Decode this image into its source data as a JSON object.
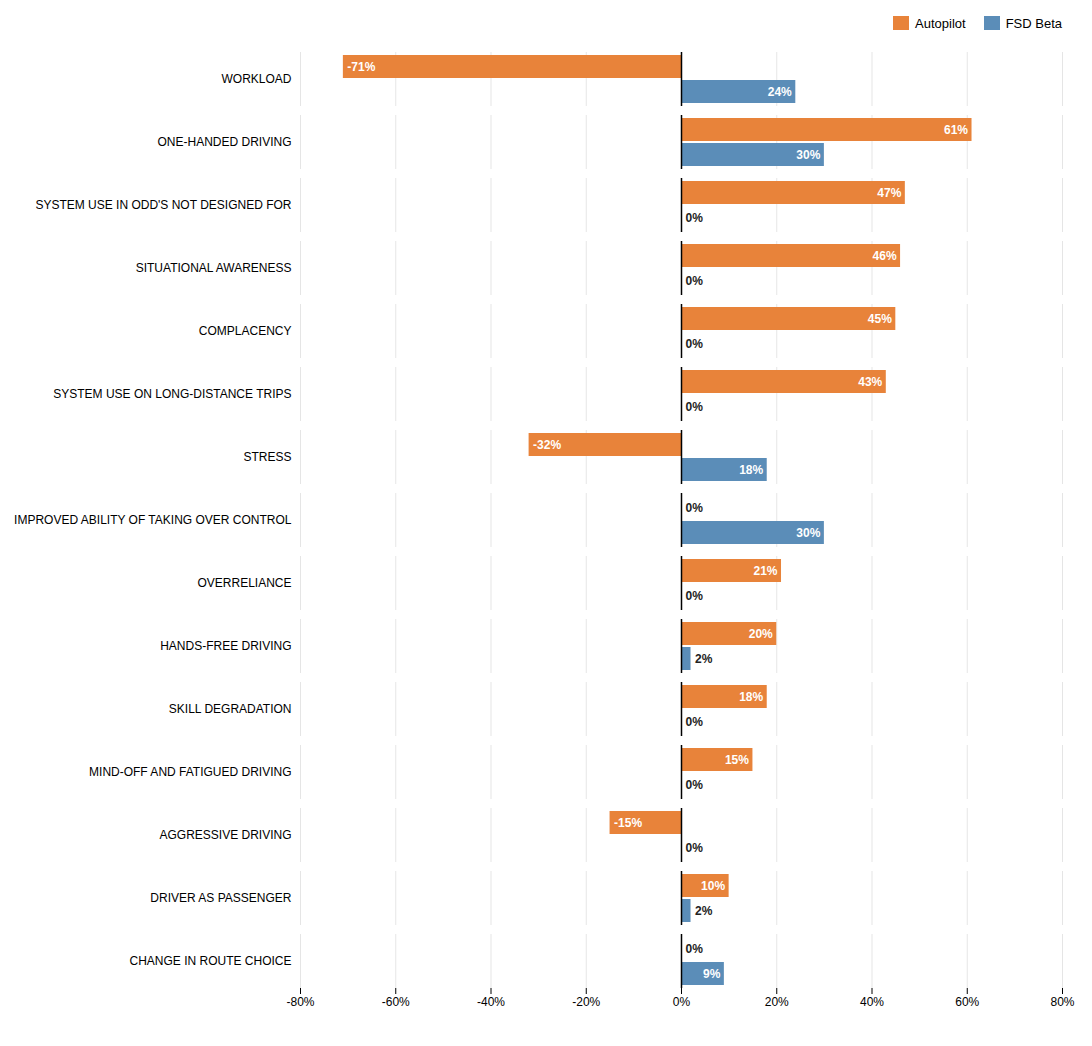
{
  "chart_data": {
    "type": "bar",
    "orientation": "horizontal",
    "categories": [
      "WORKLOAD",
      "ONE-HANDED DRIVING",
      "SYSTEM USE IN ODD'S NOT DESIGNED FOR",
      "SITUATIONAL AWARENESS",
      "COMPLACENCY",
      "SYSTEM USE ON LONG-DISTANCE TRIPS",
      "STRESS",
      "IMPROVED ABILITY OF TAKING OVER CONTROL",
      "OVERRELIANCE",
      "HANDS-FREE DRIVING",
      "SKILL DEGRADATION",
      "MIND-OFF AND FATIGUED DRIVING",
      "AGGRESSIVE DRIVING",
      "DRIVER AS PASSENGER",
      "CHANGE IN ROUTE CHOICE"
    ],
    "series": [
      {
        "name": "Autopilot",
        "color": "#E8833A",
        "values": [
          -71,
          61,
          47,
          46,
          45,
          43,
          -32,
          0,
          21,
          20,
          18,
          15,
          -15,
          10,
          0
        ],
        "value_labels": [
          "-71%",
          "61%",
          "47%",
          "46%",
          "45%",
          "43%",
          "-32%",
          "0%",
          "21%",
          "20%",
          "18%",
          "15%",
          "-15%",
          "10%",
          "0%"
        ]
      },
      {
        "name": "FSD Beta",
        "color": "#5B8DB8",
        "values": [
          24,
          30,
          0,
          0,
          0,
          0,
          18,
          30,
          0,
          2,
          0,
          0,
          0,
          2,
          9
        ],
        "value_labels": [
          "24%",
          "30%",
          "0%",
          "0%",
          "0%",
          "0%",
          "18%",
          "30%",
          "0%",
          "2%",
          "0%",
          "0%",
          "0%",
          "2%",
          "9%"
        ]
      }
    ],
    "xlim": [
      -80,
      80
    ],
    "xticks": [
      {
        "value": -80,
        "label": "-80%"
      },
      {
        "value": -60,
        "label": "-60%"
      },
      {
        "value": -40,
        "label": "-40%"
      },
      {
        "value": -20,
        "label": "-20%"
      },
      {
        "value": 0,
        "label": "0%"
      },
      {
        "value": 20,
        "label": "20%"
      },
      {
        "value": 40,
        "label": "40%"
      },
      {
        "value": 60,
        "label": "60%"
      },
      {
        "value": 80,
        "label": "80%"
      }
    ],
    "grid": true,
    "legend": "right",
    "data_labels": true
  }
}
